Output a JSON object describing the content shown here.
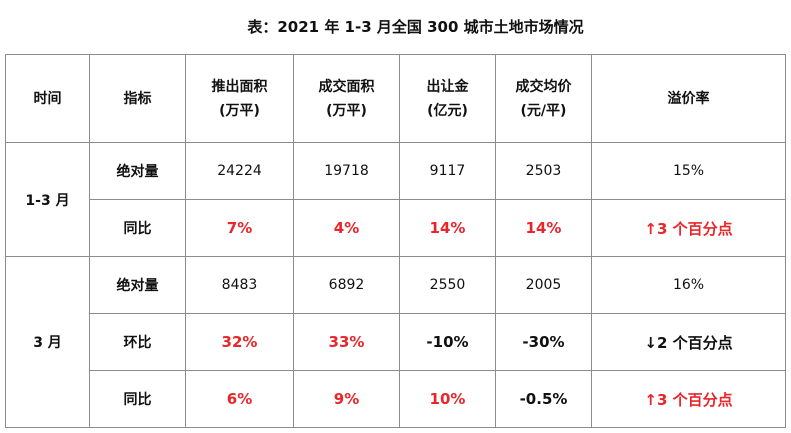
{
  "title": "表：2021 年 1-3 月全国 300 城市土地市场情况",
  "headers": {
    "time": "时间",
    "indicator": "指标",
    "supply_area": [
      "推出面积",
      "(万平)"
    ],
    "deal_area": [
      "成交面积",
      "(万平)"
    ],
    "transfer_fee": [
      "出让金",
      "(亿元)"
    ],
    "avg_price": [
      "成交均价",
      "(元/平)"
    ],
    "premium_rate": "溢价率"
  },
  "groups": [
    {
      "period": "1-3 月",
      "rows": [
        {
          "indicator": "绝对量",
          "supply_area": "24224",
          "deal_area": "19718",
          "transfer_fee": "9117",
          "avg_price": "2503",
          "premium_rate": "15%"
        },
        {
          "indicator": "同比",
          "supply_area": "7%",
          "deal_area": "4%",
          "transfer_fee": "14%",
          "avg_price": "14%",
          "premium_rate": "3 个百分点",
          "premium_arrow": "↑"
        }
      ]
    },
    {
      "period": "3 月",
      "rows": [
        {
          "indicator": "绝对量",
          "supply_area": "8483",
          "deal_area": "6892",
          "transfer_fee": "2550",
          "avg_price": "2005",
          "premium_rate": "16%"
        },
        {
          "indicator": "环比",
          "supply_area": "32%",
          "deal_area": "33%",
          "transfer_fee": "-10%",
          "avg_price": "-30%",
          "premium_rate": "2 个百分点",
          "premium_arrow": "↓"
        },
        {
          "indicator": "同比",
          "supply_area": "6%",
          "deal_area": "9%",
          "transfer_fee": "10%",
          "avg_price": "-0.5%",
          "premium_rate": "3 个百分点",
          "premium_arrow": "↑"
        }
      ]
    }
  ],
  "colors": {
    "positive": "#e8262b",
    "arrow_up": "#e8262b",
    "arrow_down": "#111111",
    "border": "#8c8c8c"
  }
}
